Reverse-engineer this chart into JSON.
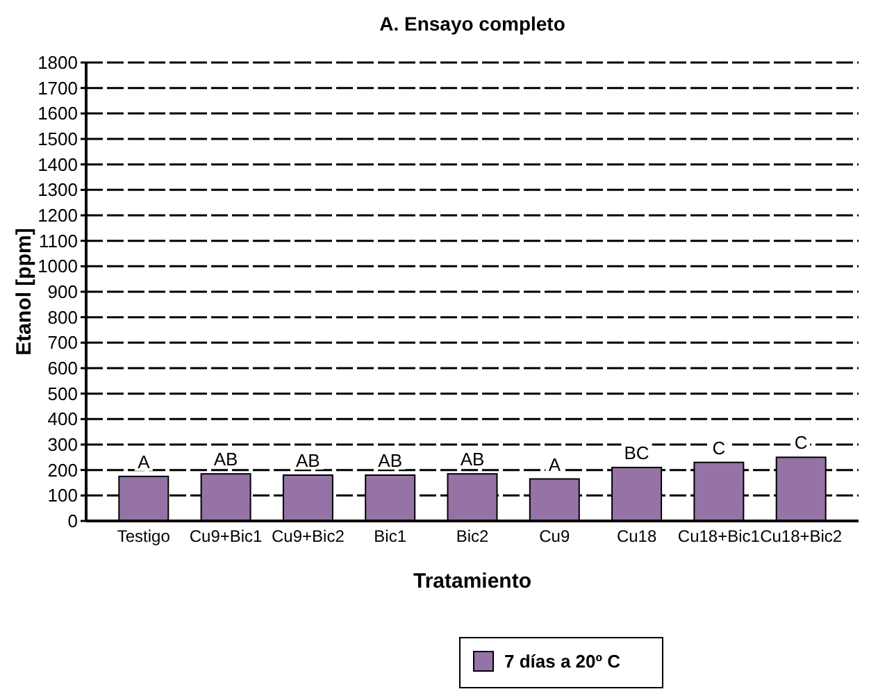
{
  "chart_data": {
    "type": "bar",
    "title": "A. Ensayo completo",
    "xlabel": "Tratamiento",
    "ylabel": "Etanol [ppm]",
    "categories": [
      "Testigo",
      "Cu9+Bic1",
      "Cu9+Bic2",
      "Bic1",
      "Bic2",
      "Cu9",
      "Cu18",
      "Cu18+Bic1",
      "Cu18+Bic2"
    ],
    "series": [
      {
        "name": "7 días a 20º C",
        "color": "#9673a6",
        "values": [
          175,
          185,
          180,
          180,
          185,
          165,
          210,
          230,
          250
        ]
      }
    ],
    "ylim": [
      0,
      1800
    ],
    "yticks": [
      0,
      100,
      200,
      300,
      400,
      500,
      600,
      700,
      800,
      900,
      1000,
      1100,
      1200,
      1300,
      1400,
      1500,
      1600,
      1700,
      1800
    ],
    "grid": "y",
    "legend": "bottom",
    "annotations": [
      {
        "text": "A",
        "x": "Testigo",
        "y": 175
      },
      {
        "text": "AB",
        "x": "Cu9+Bic1",
        "y": 185
      },
      {
        "text": "AB",
        "x": "Cu9+Bic2",
        "y": 180
      },
      {
        "text": "AB",
        "x": "Bic1",
        "y": 180
      },
      {
        "text": "AB",
        "x": "Bic2",
        "y": 185
      },
      {
        "text": "A",
        "x": "Cu9",
        "y": 165
      },
      {
        "text": "BC",
        "x": "Cu18",
        "y": 210
      },
      {
        "text": "C",
        "x": "Cu18+Bic1",
        "y": 230
      },
      {
        "text": "C",
        "x": "Cu18+Bic2",
        "y": 250
      }
    ]
  }
}
